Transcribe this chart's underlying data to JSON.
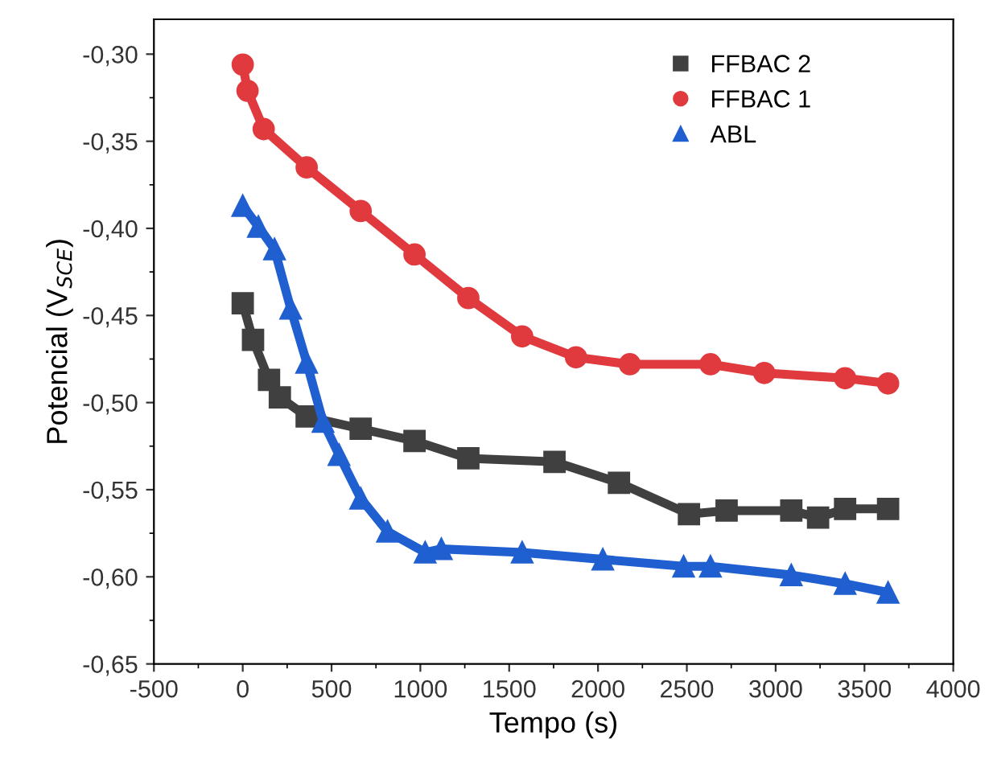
{
  "chart_data": {
    "type": "line",
    "xlabel": "Tempo (s)",
    "ylabel": "Potencial (V$_{SCE}$)",
    "xlim": [
      -500,
      4000
    ],
    "xticks": [
      -500,
      0,
      500,
      1000,
      1500,
      2000,
      2500,
      3000,
      3500,
      4000
    ],
    "ylim": [
      -0.65,
      -0.28
    ],
    "yticks": [
      {
        "value": -0.65,
        "label": "-0,65"
      },
      {
        "value": -0.6,
        "label": "-0,60"
      },
      {
        "value": -0.55,
        "label": "-0,55"
      },
      {
        "value": -0.5,
        "label": "-0,50"
      },
      {
        "value": -0.45,
        "label": "-0,45"
      },
      {
        "value": -0.4,
        "label": "-0,40"
      },
      {
        "value": -0.35,
        "label": "-0,35"
      },
      {
        "value": -0.3,
        "label": "-0,30"
      }
    ],
    "grid": false,
    "legend": "top right",
    "line_style": "solid",
    "series": [
      {
        "name": "FFBAC 2",
        "color": "#404040",
        "marker": "square",
        "x": [
          0,
          58,
          148,
          209,
          360,
          664,
          967,
          1270,
          1755,
          2118,
          2512,
          2724,
          3088,
          3239,
          3391,
          3633
        ],
        "values": [
          -0.443,
          -0.464,
          -0.487,
          -0.497,
          -0.508,
          -0.515,
          -0.522,
          -0.532,
          -0.534,
          -0.546,
          -0.564,
          -0.562,
          -0.562,
          -0.566,
          -0.561,
          -0.561
        ]
      },
      {
        "name": "FFBAC 1",
        "color": "#e03a3e",
        "marker": "circle",
        "x": [
          0,
          27,
          118,
          360,
          664,
          967,
          1270,
          1573,
          1876,
          2179,
          2633,
          2936,
          3391,
          3633
        ],
        "values": [
          -0.306,
          -0.321,
          -0.343,
          -0.365,
          -0.39,
          -0.415,
          -0.44,
          -0.462,
          -0.474,
          -0.478,
          -0.478,
          -0.483,
          -0.486,
          -0.489
        ]
      },
      {
        "name": "ABL",
        "color": "#1f5fd0",
        "marker": "triangle",
        "x": [
          0,
          88,
          179,
          270,
          360,
          452,
          542,
          664,
          815,
          1027,
          1118,
          1573,
          2027,
          2482,
          2633,
          3088,
          3391,
          3633
        ],
        "values": [
          -0.387,
          -0.399,
          -0.412,
          -0.446,
          -0.477,
          -0.511,
          -0.53,
          -0.555,
          -0.574,
          -0.586,
          -0.584,
          -0.586,
          -0.59,
          -0.594,
          -0.594,
          -0.599,
          -0.604,
          -0.609
        ]
      }
    ]
  }
}
